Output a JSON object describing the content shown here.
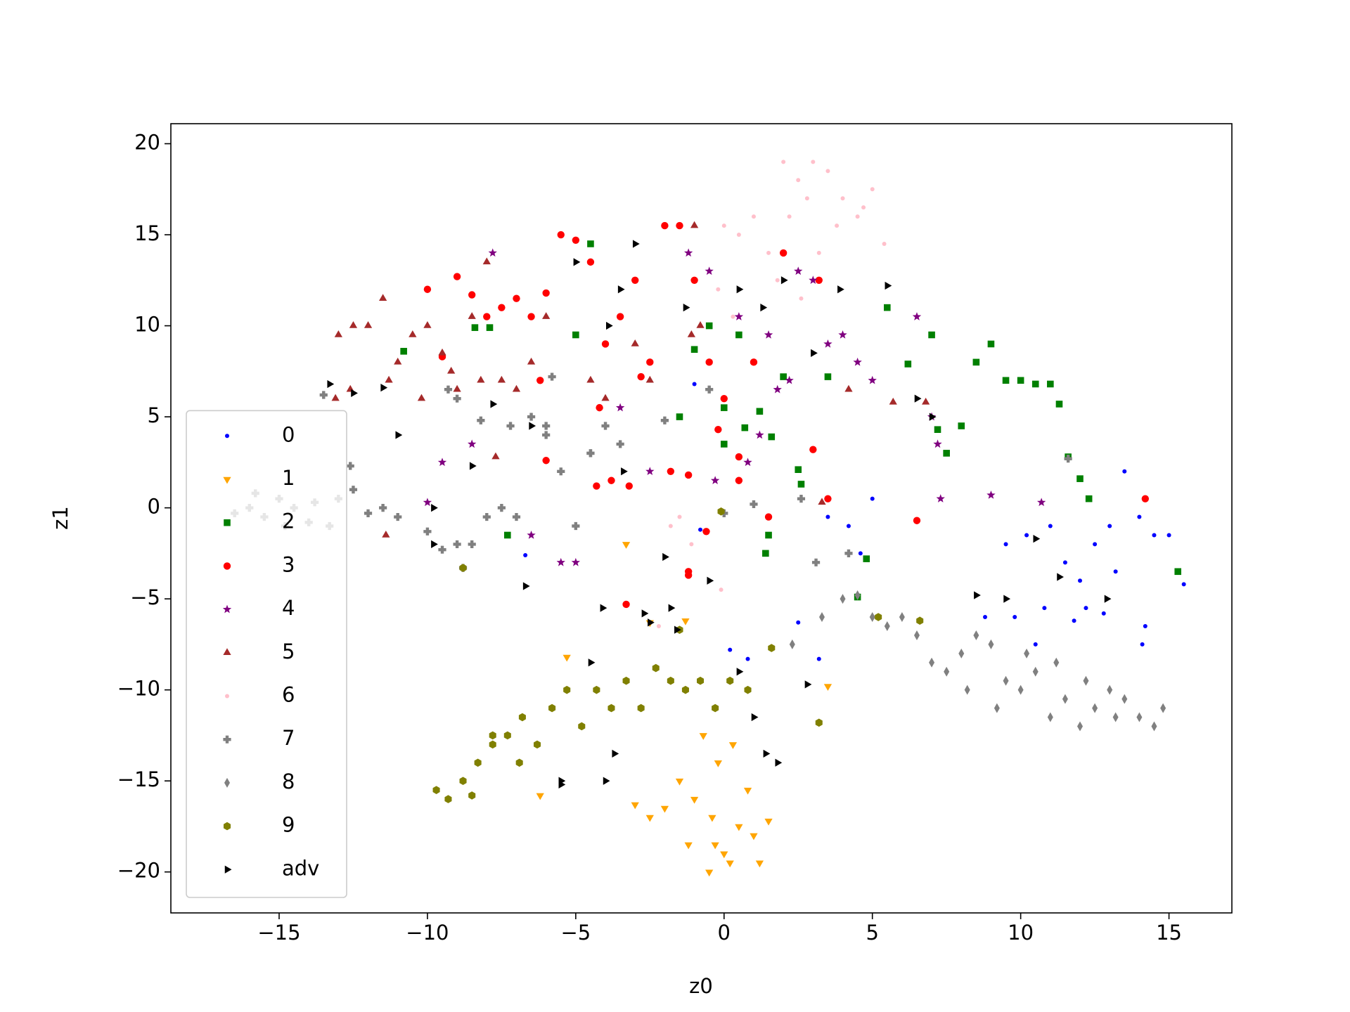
{
  "chart_data": {
    "type": "scatter",
    "x_label": "z0",
    "y_label": "z1",
    "xlim": [
      -18.65,
      17.12
    ],
    "ylim": [
      -22.25,
      21.1
    ],
    "xticks": [
      {
        "value": -15,
        "label": "−15"
      },
      {
        "value": -10,
        "label": "−10"
      },
      {
        "value": -5,
        "label": "−5"
      },
      0,
      5,
      10,
      15
    ],
    "yticks": [
      {
        "value": -20,
        "label": "−20"
      },
      {
        "value": -15,
        "label": "−15"
      },
      {
        "value": -10,
        "label": "−10"
      },
      {
        "value": -5,
        "label": "−5"
      },
      0,
      5,
      10,
      15,
      20
    ],
    "legend": "lower left",
    "series": [
      {
        "name": "0",
        "color": "#0000ff",
        "marker": ".",
        "x": [
          9.5,
          10.2,
          11,
          11.5,
          12,
          12.5,
          13,
          13.5,
          14,
          14.5,
          15,
          15.5,
          10.8,
          11.8,
          12.8,
          13.2,
          9.8,
          8.8,
          10.5,
          12.2,
          14.2,
          14.1,
          5,
          4.2,
          3.5,
          4.6,
          2.5,
          3.2,
          0.2,
          0.8,
          -0.8,
          -1,
          -6.7
        ],
        "y": [
          -2,
          -1.5,
          -1,
          -3,
          -4,
          -2,
          -1,
          2,
          -0.5,
          -1.5,
          -1.5,
          -4.2,
          -5.5,
          -6.2,
          -5.8,
          -3.5,
          -6,
          -6,
          -7.5,
          -5.5,
          -6.5,
          -7.5,
          0.5,
          -1,
          -0.5,
          -2.5,
          -6.3,
          -8.3,
          -7.8,
          -8.3,
          -1.2,
          6.8,
          -2.6
        ]
      },
      {
        "name": "1",
        "color": "#ffa500",
        "marker": "v",
        "x": [
          -0.3,
          -0.5,
          0,
          0.5,
          -1,
          -1.5,
          0.8,
          1,
          1.2,
          -0.2,
          -0.7,
          0.3,
          -2,
          -2.5,
          -3,
          -1.2,
          0.2,
          -0.4,
          1.5,
          -5.3,
          -6.2,
          3.5,
          -3.3,
          -2.5,
          -1.3
        ],
        "y": [
          -18.5,
          -20,
          -19,
          -17.5,
          -16,
          -15,
          -15.5,
          -18,
          -19.5,
          -14,
          -12.5,
          -13,
          -16.5,
          -17,
          -16.3,
          -18.5,
          -19.5,
          -17,
          -17.2,
          -8.2,
          -15.8,
          -9.8,
          -2,
          -6.3,
          -6.2
        ]
      },
      {
        "name": "2",
        "color": "#008000",
        "marker": "s",
        "x": [
          -4.5,
          -5,
          -7.9,
          -8.4,
          -10.8,
          -1.5,
          -0.5,
          0,
          0.5,
          1.2,
          1.6,
          2,
          2.5,
          2.6,
          3.5,
          5.5,
          6.2,
          7,
          7.5,
          8,
          8.5,
          9,
          9.5,
          10,
          10.5,
          11,
          11.3,
          11.6,
          12,
          12.3,
          7.2,
          4.8,
          4.5,
          1.4,
          1.5,
          -7.3,
          15.3,
          -1,
          0.7,
          0
        ],
        "y": [
          14.5,
          9.5,
          9.9,
          9.9,
          8.6,
          5,
          10,
          3.5,
          9.5,
          5.3,
          3.9,
          7.2,
          2.1,
          1.3,
          7.2,
          11,
          7.9,
          9.5,
          3,
          4.5,
          8,
          9,
          7,
          7,
          6.8,
          6.8,
          5.7,
          2.8,
          1.6,
          0.5,
          4.3,
          -2.8,
          -4.9,
          -2.5,
          -1.5,
          -1.5,
          -3.5,
          8.7,
          4.4,
          5.5
        ]
      },
      {
        "name": "3",
        "color": "#ff0000",
        "marker": "o",
        "x": [
          -10,
          -9,
          -8.5,
          -7.5,
          -7,
          -6.5,
          -6,
          -5.5,
          -5,
          -4.5,
          -4,
          -3.5,
          -3,
          -2.5,
          -2,
          -1.5,
          -1,
          -0.5,
          0,
          0.5,
          1,
          2,
          3,
          -9.5,
          -8,
          -6.2,
          -4.2,
          -3.8,
          -2.8,
          -1.8,
          -0.2,
          -1.2,
          -4.3,
          -3.2,
          -1.2,
          0.5,
          1.5,
          3.5,
          3.2,
          -6,
          14.2,
          6.5,
          -0.6,
          -1.2,
          -3.3
        ],
        "y": [
          12,
          12.7,
          11.7,
          11,
          11.5,
          10.5,
          11.8,
          15,
          14.7,
          13.5,
          9,
          10.5,
          12.5,
          8,
          15.5,
          15.5,
          12.5,
          8,
          6,
          2.8,
          8,
          14,
          3.2,
          8.3,
          10.5,
          7,
          5.5,
          1.5,
          7.2,
          2,
          4.3,
          1.8,
          1.2,
          1.2,
          -3.5,
          1.5,
          -0.5,
          0.5,
          12.5,
          2.6,
          0.5,
          -0.7,
          -1.3,
          -3.7,
          -5.3
        ]
      },
      {
        "name": "4",
        "color": "#800080",
        "marker": "*",
        "x": [
          -7.8,
          -1.2,
          -0.5,
          0.5,
          1.5,
          2.5,
          3,
          3.5,
          4,
          4.5,
          5,
          6.5,
          7,
          7.2,
          7.3,
          9,
          10.7,
          -8.5,
          -9.5,
          -10,
          -5,
          -5.5,
          -6.5,
          -2.5,
          -3.5,
          0.8,
          1.2,
          2.2,
          -0.3,
          1.8
        ],
        "y": [
          14,
          14,
          13,
          10.5,
          9.5,
          13,
          12.5,
          9,
          9.5,
          8,
          7,
          10.5,
          5,
          3.5,
          0.5,
          0.7,
          0.3,
          3.5,
          2.5,
          0.3,
          -3,
          -3,
          -1.5,
          2,
          5.5,
          2.5,
          4,
          7,
          1.5,
          6.5
        ]
      },
      {
        "name": "5",
        "color": "#a52a2a",
        "marker": "^",
        "x": [
          -13,
          -12.5,
          -12,
          -11.5,
          -11,
          -10.5,
          -10,
          -9.5,
          -9,
          -8.5,
          -8,
          -7.5,
          -7,
          -6.5,
          -6,
          -8.2,
          -9.2,
          -10.2,
          -11.3,
          -12.6,
          -7.7,
          -4.5,
          -4,
          -3,
          -2.5,
          -1,
          -1.1,
          -0.8,
          3.3,
          4.2,
          5.7,
          6.8,
          -11.4,
          -13.1
        ],
        "y": [
          9.5,
          10,
          10,
          11.5,
          8,
          9.5,
          10,
          8.5,
          6.5,
          10.5,
          13.5,
          7,
          6.5,
          8,
          10.5,
          7,
          7.5,
          6,
          7,
          6.5,
          2.8,
          7,
          6,
          9,
          7,
          15.5,
          9.5,
          10,
          0.3,
          6.5,
          5.8,
          5.8,
          -1.5,
          6
        ]
      },
      {
        "name": "6",
        "color": "#ffc0cb",
        "marker": ".",
        "x": [
          2,
          2.5,
          3,
          3.5,
          4,
          4.5,
          5,
          1,
          0.5,
          0,
          -0.2,
          1.5,
          2.2,
          2.8,
          3.8,
          4.7,
          5.4,
          1.8,
          3.2,
          2.6,
          0.3,
          -1.5,
          -1.8,
          -1.1,
          -0.1,
          -2.2
        ],
        "y": [
          19,
          18,
          19,
          18.5,
          17,
          16,
          17.5,
          16,
          15,
          15.5,
          12,
          14,
          16,
          17,
          15.5,
          16.5,
          14.5,
          12.5,
          14,
          11.5,
          10.5,
          -0.5,
          -1,
          -2,
          -4.5,
          -6.5
        ]
      },
      {
        "name": "7",
        "color": "#808080",
        "marker": "P",
        "x": [
          -13.5,
          -12.5,
          -12,
          -11.5,
          -10,
          -9.5,
          -9,
          -8.5,
          -8,
          -7.5,
          -7,
          -6.5,
          -6,
          -5.5,
          -5,
          -4.5,
          -4,
          -3.5,
          -9,
          -8.2,
          -7.2,
          -6,
          -11,
          -13,
          -12.6,
          -9.3,
          -4.5,
          -2,
          -0.5,
          0,
          1,
          2.6,
          3.1,
          4.2,
          11.6,
          -5.8,
          -8.8,
          -16,
          -15.5,
          -15,
          -14.5,
          -14,
          -16.5,
          -15.8,
          -14.8,
          -13.8,
          -13.3
        ],
        "y": [
          6.2,
          1,
          -0.3,
          0,
          -1.3,
          -2.3,
          -2,
          -2,
          -0.5,
          0,
          -0.5,
          5,
          4.5,
          2,
          -1,
          3,
          4.5,
          3.5,
          6,
          4.8,
          4.5,
          4,
          -0.5,
          0.5,
          2.3,
          6.5,
          3,
          4.8,
          6.5,
          -0.3,
          0.2,
          0.5,
          -3,
          -2.5,
          2.7,
          7.2,
          -3.3,
          0,
          -0.5,
          0.5,
          0,
          -0.8,
          -0.3,
          0.8,
          -1,
          0.3,
          -1
        ]
      },
      {
        "name": "8",
        "color": "#808080",
        "marker": "d",
        "x": [
          4,
          4.5,
          5,
          5.5,
          6,
          6.5,
          7,
          7.5,
          8,
          8.5,
          9,
          9.5,
          10,
          10.5,
          11,
          11.5,
          12,
          12.5,
          13,
          13.5,
          14,
          14.5,
          14.8,
          9.2,
          11.2,
          12.2,
          13.2,
          8.2,
          10.2,
          3.3,
          2.3
        ],
        "y": [
          -5,
          -4.8,
          -6,
          -6.5,
          -6,
          -7,
          -8.5,
          -9,
          -8,
          -7,
          -7.5,
          -9.5,
          -10,
          -9,
          -11.5,
          -10.5,
          -12,
          -11,
          -10,
          -10.5,
          -11.5,
          -12,
          -11,
          -11,
          -8.5,
          -9.5,
          -11.5,
          -10,
          -8,
          -6,
          -7.5
        ]
      },
      {
        "name": "9",
        "color": "#808000",
        "marker": "h",
        "x": [
          -9.7,
          -9.3,
          -8.8,
          -8.3,
          -7.8,
          -7.3,
          -6.8,
          -6.3,
          -5.8,
          -5.3,
          -4.8,
          -4.3,
          -3.8,
          -3.3,
          -2.8,
          -2.3,
          -1.8,
          -1.3,
          -0.8,
          -0.3,
          0.2,
          0.8,
          1.6,
          -6.9,
          -7.8,
          -8.5,
          -1.5,
          3.2,
          -8.8,
          6.6,
          5.2,
          -0.1
        ],
        "y": [
          -15.5,
          -16,
          -15,
          -14,
          -13,
          -12.5,
          -11.5,
          -13,
          -11,
          -10,
          -12,
          -10,
          -11,
          -9.5,
          -11,
          -8.8,
          -9.5,
          -10,
          -9.5,
          -11,
          -9.5,
          -10,
          -7.7,
          -14,
          -12.5,
          -15.8,
          -6.7,
          -11.8,
          -3.3,
          -6.2,
          -6,
          -0.2
        ]
      },
      {
        "name": "adv",
        "color": "#000000",
        "marker": ">",
        "x": [
          -13.3,
          -12.5,
          -11.5,
          -11,
          -9.8,
          -8.5,
          -7.8,
          -6.5,
          -5.5,
          -5,
          -4,
          -3.5,
          -3,
          -2,
          -1.3,
          0.5,
          1.3,
          2,
          3,
          3.9,
          5.5,
          6.5,
          7,
          8.5,
          9.5,
          10.5,
          11.3,
          12.9,
          -4.1,
          -3.9,
          -2.5,
          -1.8,
          -0.5,
          0.5,
          1,
          1.4,
          1.8,
          2.8,
          -6.7,
          -4.5,
          -3.7,
          -5.5,
          -1.6,
          -2.7,
          -9.8,
          -3.4
        ],
        "y": [
          6.8,
          6.3,
          6.6,
          4,
          -2,
          2.3,
          5.7,
          4.5,
          -15.2,
          13.5,
          -15,
          12,
          14.5,
          -2.7,
          11,
          12,
          11,
          12.5,
          8.5,
          12,
          12.2,
          6,
          5,
          -4.8,
          -5,
          -1.7,
          -3.8,
          -5,
          -5.5,
          10,
          -6.3,
          -5.5,
          -4,
          -9,
          -11.5,
          -13.5,
          -14,
          -9.7,
          -4.3,
          -8.5,
          -13.5,
          -15,
          -6.7,
          -5.8,
          0,
          2
        ]
      }
    ]
  }
}
